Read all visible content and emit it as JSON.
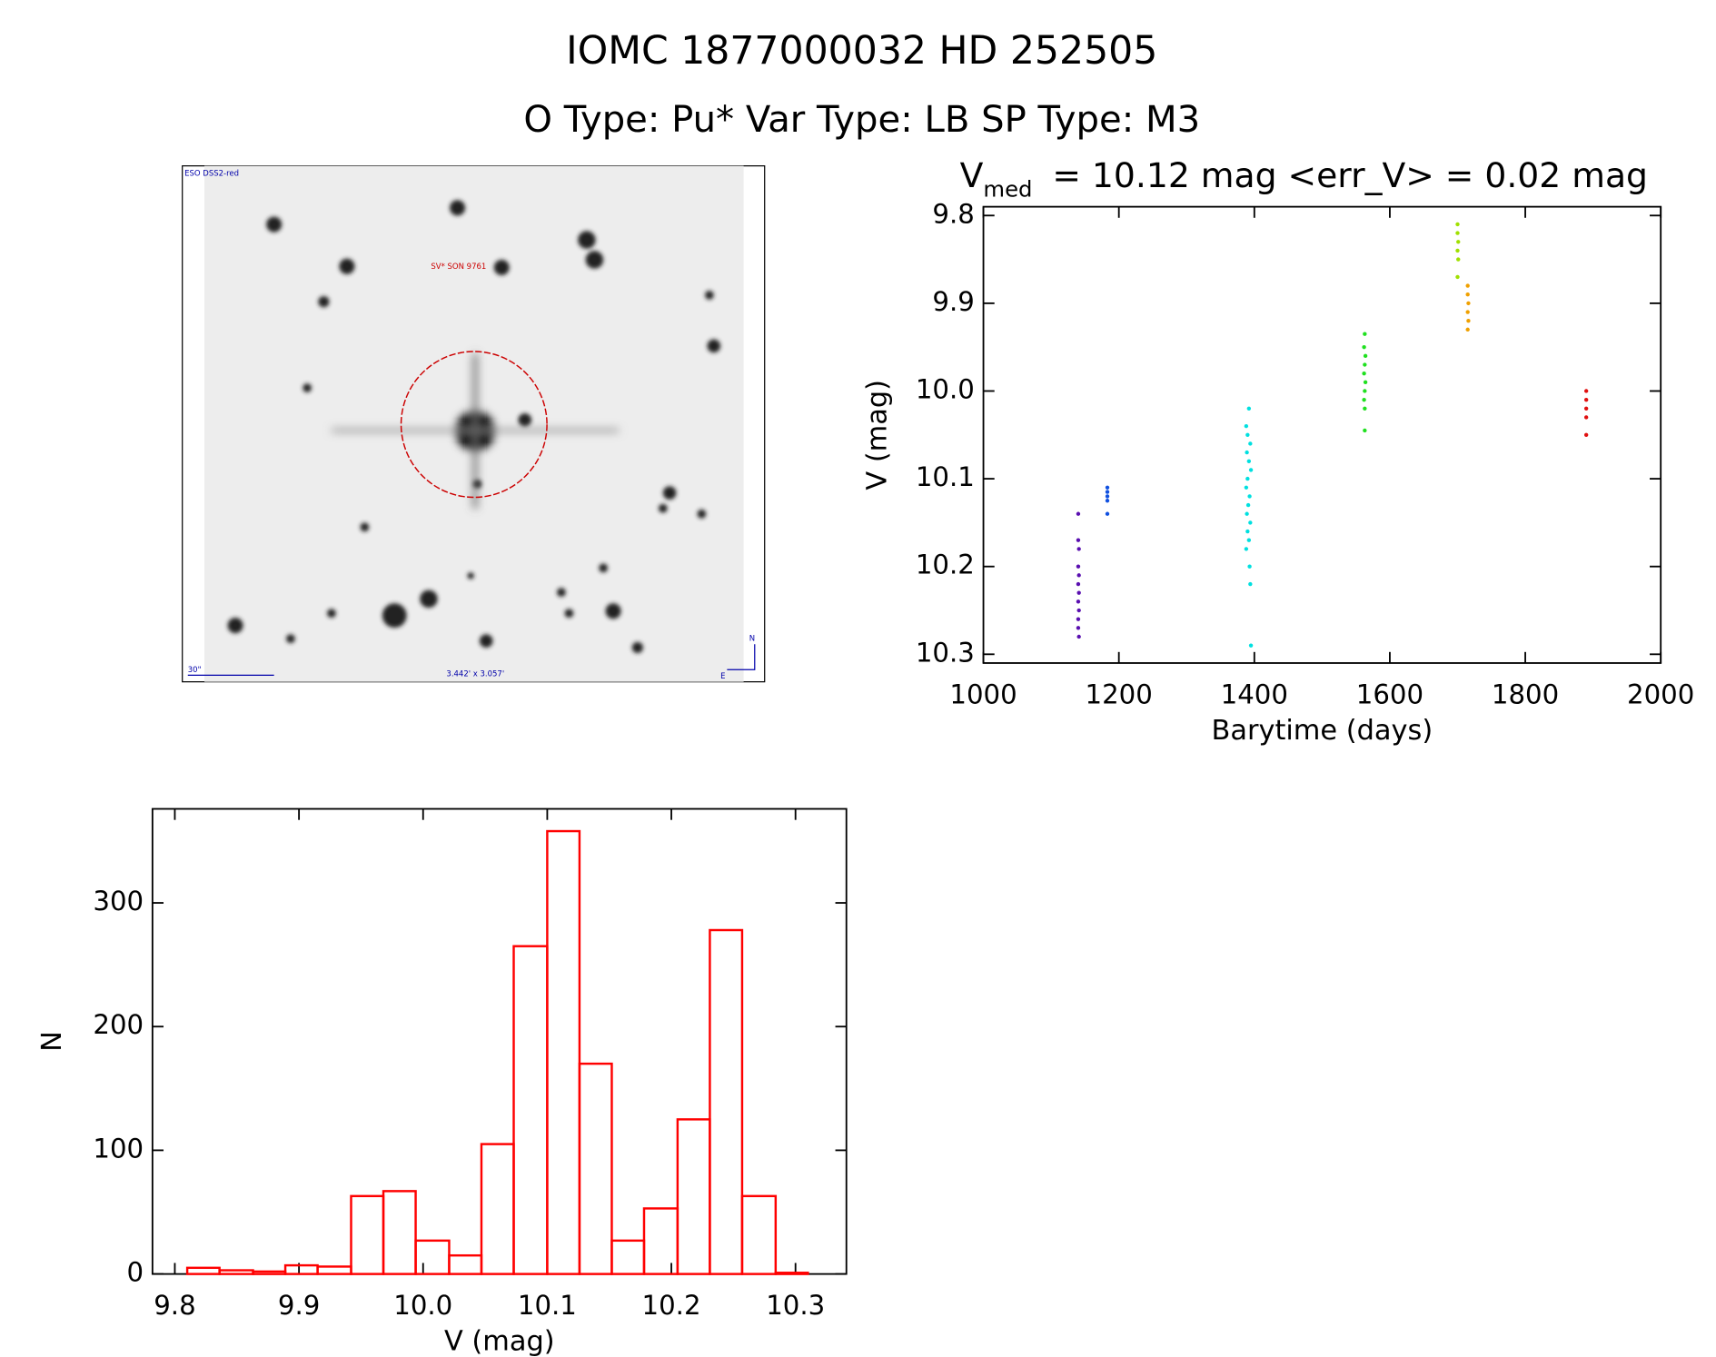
{
  "header": {
    "title": "IOMC 1877000032   HD 252505",
    "subtitle": "O Type: Pu*  Var Type: LB  SP Type: M3"
  },
  "image": {
    "survey": "ESO DSS2-red",
    "target": "SV* SON 9761",
    "scale": "30\"",
    "size": "3.442' x 3.057'",
    "north": "N",
    "east": "E"
  },
  "chart_data": [
    {
      "type": "scatter",
      "title_symbol": "V",
      "title_subscript": "med",
      "title": "= 10.12 mag <err_V> = 0.02 mag",
      "x_label": "Barytime (days)",
      "y_label": "V (mag)",
      "xlim": [
        1000,
        2000
      ],
      "xticks": [
        1000,
        1200,
        1400,
        1600,
        1800,
        2000
      ],
      "ylim": [
        10.31,
        9.79
      ],
      "yticks": [
        9.8,
        9.9,
        {
          "value": 10,
          "label": "10.0"
        },
        10.1,
        10.2,
        10.3
      ],
      "series": [
        {
          "color": "#5a0fb0",
          "x": [
            1140,
            1140,
            1141,
            1140,
            1141,
            1140,
            1141,
            1140,
            1141,
            1140,
            1140,
            1141
          ],
          "y": [
            10.14,
            10.17,
            10.18,
            10.2,
            10.21,
            10.22,
            10.23,
            10.24,
            10.25,
            10.26,
            10.27,
            10.28
          ]
        },
        {
          "color": "#1050e0",
          "x": [
            1183,
            1183,
            1183,
            1183,
            1183
          ],
          "y": [
            10.11,
            10.115,
            10.12,
            10.125,
            10.14
          ]
        },
        {
          "color": "#00e0e0",
          "x": [
            1392,
            1388,
            1390,
            1394,
            1389,
            1392,
            1395,
            1390,
            1388,
            1393,
            1391,
            1389,
            1394,
            1390,
            1392,
            1388,
            1393,
            1394,
            1395
          ],
          "y": [
            10.02,
            10.04,
            10.05,
            10.06,
            10.07,
            10.08,
            10.09,
            10.1,
            10.11,
            10.12,
            10.13,
            10.14,
            10.15,
            10.16,
            10.17,
            10.18,
            10.2,
            10.22,
            10.29
          ]
        },
        {
          "color": "#20e020",
          "x": [
            1563,
            1562,
            1564,
            1563,
            1562,
            1564,
            1563,
            1562,
            1563,
            1563
          ],
          "y": [
            9.935,
            9.95,
            9.96,
            9.97,
            9.98,
            9.99,
            10.0,
            10.01,
            10.02,
            10.045
          ]
        },
        {
          "color": "#a0e000",
          "x": [
            1700,
            1700,
            1701,
            1700,
            1701,
            1700
          ],
          "y": [
            9.81,
            9.82,
            9.83,
            9.84,
            9.85,
            9.87
          ]
        },
        {
          "color": "#f0a000",
          "x": [
            1715,
            1715,
            1716,
            1715,
            1716,
            1715
          ],
          "y": [
            9.88,
            9.89,
            9.9,
            9.91,
            9.92,
            9.93
          ]
        },
        {
          "color": "#e01010",
          "x": [
            1890,
            1890,
            1890,
            1890,
            1890
          ],
          "y": [
            10.0,
            10.01,
            10.02,
            10.03,
            10.05
          ]
        }
      ]
    },
    {
      "type": "histogram",
      "x_label": "V (mag)",
      "y_label": "N",
      "color": "#ff0000",
      "bins": [
        9.81,
        9.836,
        9.863,
        9.889,
        9.915,
        9.942,
        9.968,
        9.994,
        10.021,
        10.047,
        10.073,
        10.1,
        10.126,
        10.152,
        10.178,
        10.205,
        10.231,
        10.257,
        10.284,
        10.31
      ],
      "counts": [
        5,
        3,
        2,
        7,
        6,
        63,
        67,
        27,
        15,
        105,
        265,
        358,
        170,
        27,
        53,
        125,
        278,
        63,
        1
      ],
      "xlim": [
        9.782,
        10.341
      ],
      "xticks": [
        9.8,
        9.9,
        {
          "value": 10,
          "label": "10.0"
        },
        10.1,
        10.2,
        10.3
      ],
      "ylim": [
        0,
        376
      ],
      "yticks": [
        0,
        100,
        200,
        300
      ]
    }
  ]
}
